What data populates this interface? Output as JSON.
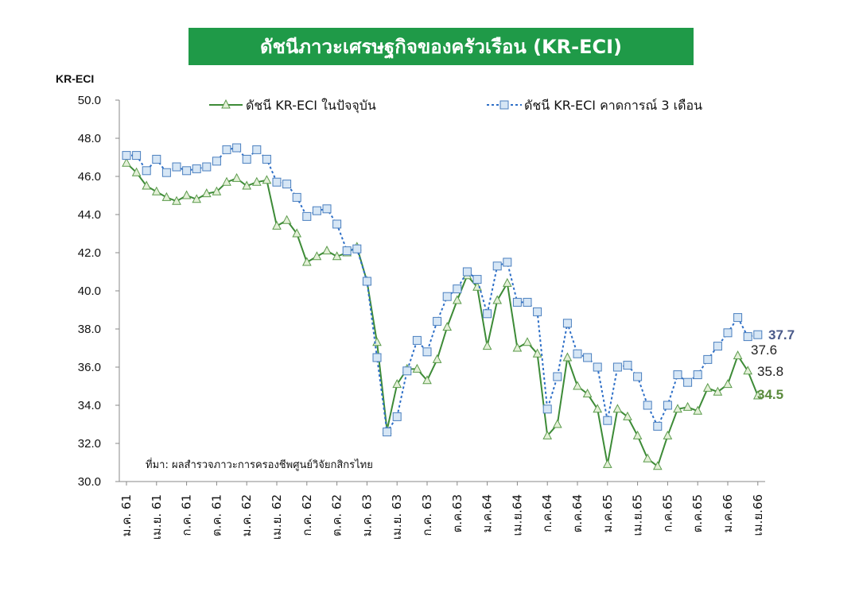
{
  "chart_data": {
    "type": "line",
    "title": "ดัชนีภาวะเศรษฐกิจของครัวเรือน (KR-ECI)",
    "ylabel": "KR-ECI",
    "ylim": [
      30,
      50
    ],
    "yticks": [
      "50.0",
      "48.0",
      "46.0",
      "44.0",
      "42.0",
      "40.0",
      "38.0",
      "36.0",
      "34.0",
      "32.0",
      "30.0"
    ],
    "x_tick_labels": [
      "ม.ค. 61",
      "เม.ย. 61",
      "ก.ค. 61",
      "ต.ค. 61",
      "ม.ค. 62",
      "เม.ย. 62",
      "ก.ค. 62",
      "ต.ค. 62",
      "ม.ค. 63",
      "เม.ย. 63",
      "ก.ค. 63",
      "ต.ค.63",
      "ม.ค.64",
      "เม.ย.64",
      "ก.ค.64",
      "ต.ค.64",
      "ม.ค.65",
      "เม.ย.65",
      "ก.ค.65",
      "ต.ค.65",
      "ม.ค.66",
      "เม.ย.66"
    ],
    "legend_position": "top",
    "series": [
      {
        "name": "ดัชนี KR-ECI ในปัจจุบัน",
        "color": "#3d8b37",
        "marker": "triangle",
        "values": [
          46.7,
          46.2,
          45.5,
          45.2,
          44.9,
          44.7,
          45.0,
          44.8,
          45.1,
          45.2,
          45.7,
          45.9,
          45.5,
          45.7,
          45.8,
          43.4,
          43.7,
          43.0,
          41.5,
          41.8,
          42.1,
          41.8,
          42.0,
          42.3,
          40.5,
          37.3,
          32.7,
          35.1,
          35.9,
          35.9,
          35.3,
          36.4,
          38.1,
          39.5,
          40.8,
          40.2,
          37.1,
          39.5,
          40.4,
          37.0,
          37.3,
          36.7,
          32.4,
          33.0,
          36.5,
          35.0,
          34.6,
          33.8,
          30.9,
          33.8,
          33.4,
          32.4,
          31.2,
          30.8,
          32.4,
          33.8,
          33.9,
          33.7,
          34.9,
          34.7,
          35.1,
          36.6,
          35.8,
          34.5
        ],
        "last_label": "34.5"
      },
      {
        "name": "ดัชนี KR-ECI คาดการณ์ 3 เดือน",
        "color": "#2e6fc7",
        "marker": "square",
        "values": [
          47.1,
          47.1,
          46.3,
          46.9,
          46.2,
          46.5,
          46.3,
          46.4,
          46.5,
          46.8,
          47.4,
          47.5,
          46.9,
          47.4,
          46.9,
          45.7,
          45.6,
          44.9,
          43.9,
          44.2,
          44.3,
          43.5,
          42.1,
          42.2,
          40.5,
          36.5,
          32.6,
          33.4,
          35.8,
          37.4,
          36.8,
          38.4,
          39.7,
          40.1,
          41.0,
          40.6,
          38.8,
          41.3,
          41.5,
          39.4,
          39.4,
          38.9,
          33.8,
          35.5,
          38.3,
          36.7,
          36.5,
          36.0,
          33.2,
          36.0,
          36.1,
          35.5,
          34.0,
          32.9,
          34.0,
          35.6,
          35.2,
          35.6,
          36.4,
          37.1,
          37.8,
          38.6,
          37.6,
          37.7
        ],
        "last_label": "37.7"
      }
    ],
    "annotations": [
      {
        "text": "37.7",
        "color": "#4a5a8a"
      },
      {
        "text": "37.6",
        "color": "#222222"
      },
      {
        "text": "35.8",
        "color": "#222222"
      },
      {
        "text": "34.5",
        "color": "#5a8a3c"
      }
    ],
    "source_note": "ที่มา: ผลสำรวจภาวะการครองชีพศูนย์วิจัยกสิกรไทย"
  }
}
